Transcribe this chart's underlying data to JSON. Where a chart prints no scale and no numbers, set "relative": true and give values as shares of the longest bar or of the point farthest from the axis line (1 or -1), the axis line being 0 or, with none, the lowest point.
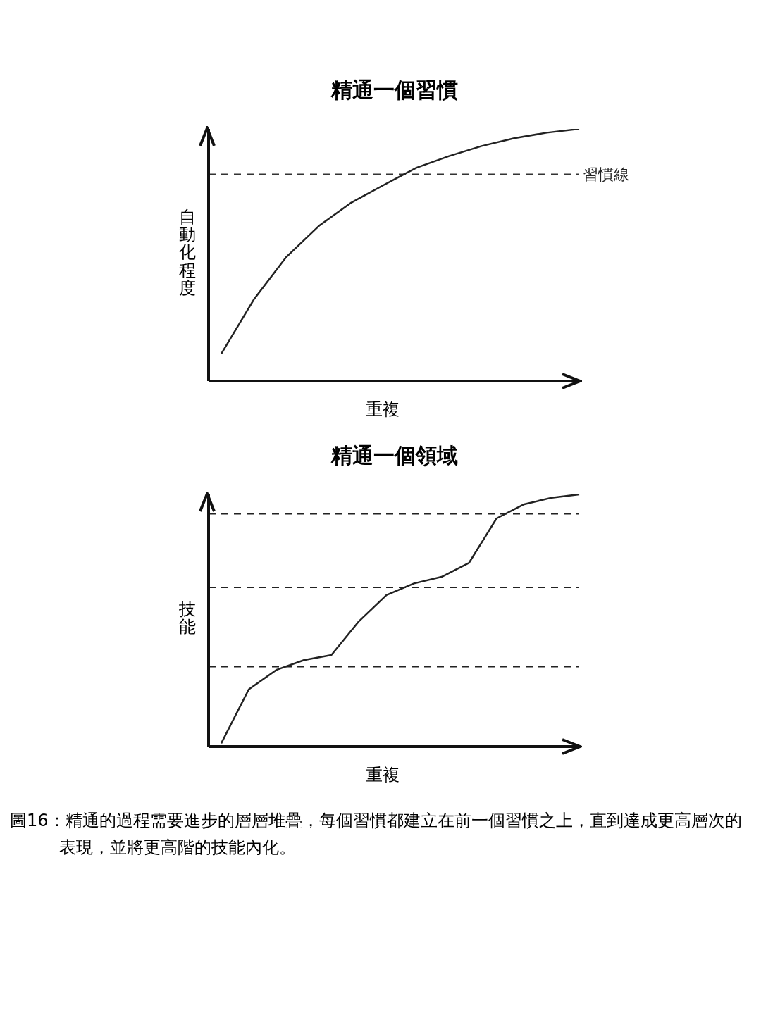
{
  "chart_data": [
    {
      "type": "line",
      "title": "精通一個習慣",
      "xlabel": "重複",
      "ylabel": "自動化程度",
      "relative": true,
      "grid": false,
      "legend": false,
      "categories": [
        null,
        null,
        null,
        null,
        null,
        null,
        null,
        null,
        null,
        null,
        null,
        null
      ],
      "series": [
        {
          "color": "#222222",
          "values": [
            0.108,
            0.323,
            0.492,
            0.615,
            0.708,
            0.778,
            0.846,
            0.892,
            0.932,
            0.963,
            0.985,
            1
          ]
        }
      ],
      "ref_lines": [
        {
          "axis": "y",
          "value": 0.82,
          "label": "習慣線",
          "line_style": "dashed",
          "color": "#333333"
        }
      ]
    },
    {
      "type": "line",
      "title": "精通一個領域",
      "xlabel": "重複",
      "ylabel": "技能",
      "relative": true,
      "grid": false,
      "legend": false,
      "categories": [
        null,
        null,
        null,
        null,
        null,
        null,
        null,
        null,
        null,
        null,
        null,
        null,
        null,
        null
      ],
      "series": [
        {
          "color": "#222222",
          "values": [
            0.013,
            0.227,
            0.304,
            0.343,
            0.363,
            0.497,
            0.601,
            0.647,
            0.673,
            0.729,
            0.905,
            0.961,
            0.987,
            1
          ]
        }
      ],
      "ref_lines": [
        {
          "axis": "y",
          "value": 0.317,
          "line_style": "dashed",
          "color": "#222222"
        },
        {
          "axis": "y",
          "value": 0.631,
          "line_style": "dashed",
          "color": "#222222"
        },
        {
          "axis": "y",
          "value": 0.923,
          "line_style": "dashed",
          "color": "#222222"
        }
      ],
      "annotations": [
        "圖16：精通的過程需要進步的層層堆疊，每個習慣都建立在前一個習慣之上，直到達成更高層次的表現，並將更高階的技能內化。"
      ]
    }
  ]
}
